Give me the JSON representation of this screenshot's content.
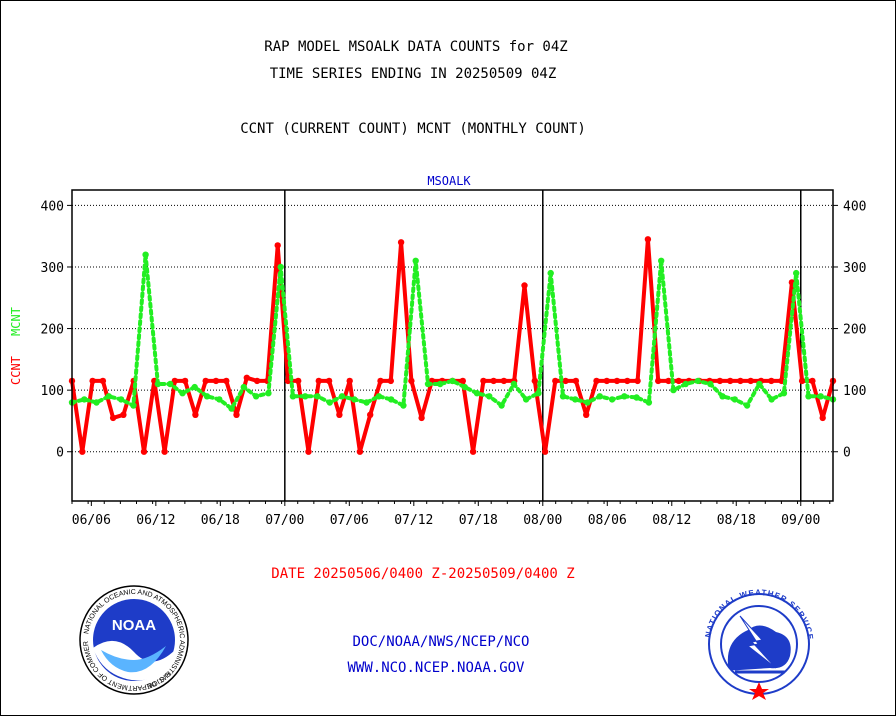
{
  "header": {
    "line1": "RAP MODEL MSOALK DATA COUNTS for 04Z",
    "line2": "TIME SERIES ENDING IN 20250509 04Z",
    "line3": "CCNT (CURRENT COUNT) MCNT (MONTHLY COUNT)"
  },
  "footer": {
    "date_range": "DATE 20250506/0400 Z-20250509/0400 Z",
    "org": "DOC/NOAA/NWS/NCEP/NCO",
    "url": "WWW.NCO.NCEP.NOAA.GOV"
  },
  "logos": {
    "noaa_text": "NOAA",
    "noaa_ring": "NATIONAL OCEANIC AND ATMOSPHERIC ADMINISTRATION",
    "noaa_ring_bottom": "U.S. DEPARTMENT OF COMMERCE",
    "nws_ring": "NATIONAL WEATHER SERVICE"
  },
  "chart_data": {
    "type": "line",
    "title": "MSOALK",
    "ylabel_parts": [
      "CCNT",
      "MCNT"
    ],
    "ylim": [
      -80,
      425
    ],
    "yticks": [
      0,
      100,
      200,
      300,
      400
    ],
    "x_range": [
      0,
      118
    ],
    "x_ticks": [
      {
        "x": 3,
        "label": "06/06"
      },
      {
        "x": 13,
        "label": "06/12"
      },
      {
        "x": 23,
        "label": "06/18"
      },
      {
        "x": 33,
        "label": "07/00"
      },
      {
        "x": 43,
        "label": "07/06"
      },
      {
        "x": 53,
        "label": "07/12"
      },
      {
        "x": 63,
        "label": "07/18"
      },
      {
        "x": 73,
        "label": "08/00"
      },
      {
        "x": 83,
        "label": "08/06"
      },
      {
        "x": 93,
        "label": "08/12"
      },
      {
        "x": 103,
        "label": "08/18"
      },
      {
        "x": 113,
        "label": "09/00"
      }
    ],
    "day_boundaries": [
      33,
      73,
      113
    ],
    "grid": true,
    "colors": {
      "ccnt": "#ff0000",
      "mcnt": "#22ee22",
      "axis": "#000000",
      "title": "#0000cc",
      "footer_red": "#ff0000",
      "footer_blue": "#0000cc"
    },
    "series": [
      {
        "name": "CCNT",
        "color": "#ff0000",
        "style": "solid",
        "values": [
          115,
          0,
          115,
          115,
          55,
          60,
          115,
          0,
          115,
          0,
          115,
          115,
          60,
          115,
          115,
          115,
          60,
          120,
          115,
          115,
          335,
          115,
          115,
          0,
          115,
          115,
          60,
          115,
          0,
          60,
          115,
          115,
          340,
          115,
          55,
          115,
          115,
          115,
          115,
          0,
          115,
          115,
          115,
          115,
          270,
          115,
          0,
          115,
          115,
          115,
          60,
          115,
          115,
          115,
          115,
          115,
          345,
          115,
          115,
          115,
          115,
          115,
          115,
          115,
          115,
          115,
          115,
          115,
          115,
          115,
          275,
          115,
          115,
          55,
          115
        ]
      },
      {
        "name": "MCNT",
        "color": "#22ee22",
        "style": "dotted",
        "values": [
          80,
          85,
          80,
          90,
          85,
          75,
          320,
          110,
          110,
          95,
          105,
          90,
          85,
          70,
          105,
          90,
          95,
          300,
          90,
          90,
          90,
          80,
          90,
          85,
          80,
          90,
          85,
          75,
          310,
          110,
          110,
          115,
          105,
          95,
          90,
          75,
          110,
          85,
          95,
          290,
          90,
          85,
          80,
          90,
          85,
          90,
          88,
          80,
          310,
          100,
          110,
          115,
          110,
          90,
          85,
          75,
          110,
          85,
          95,
          290,
          90,
          90,
          85
        ]
      }
    ]
  }
}
